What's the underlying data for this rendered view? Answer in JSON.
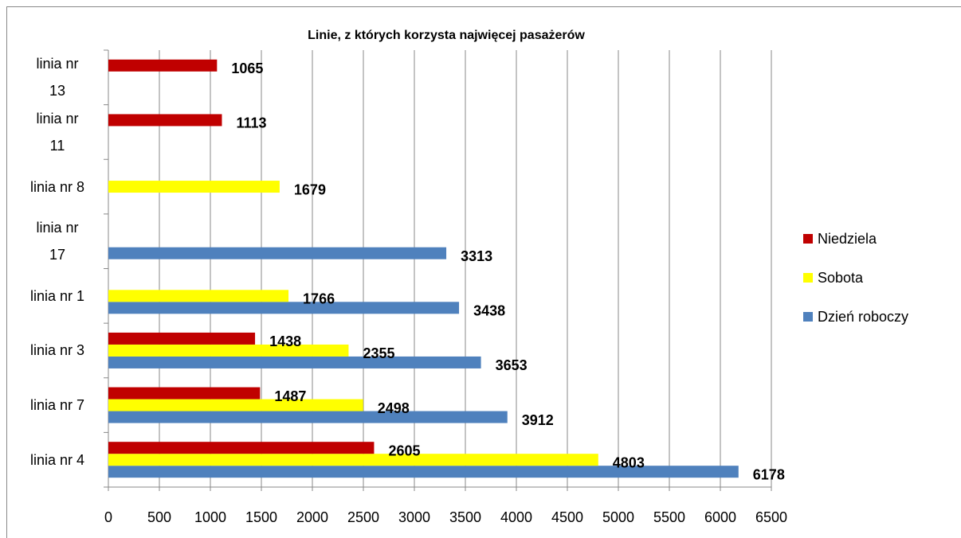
{
  "chart_data": {
    "type": "bar",
    "orientation": "horizontal",
    "title": "Linie, z których korzysta najwięcej pasażerów",
    "categories": [
      "linia nr 4",
      "linia nr 7",
      "linia nr 3",
      "linia nr 1",
      "linia nr 17",
      "linia nr 8",
      "linia nr 11",
      "linia nr 13"
    ],
    "series": [
      {
        "name": "Dzień roboczy",
        "color": "#4f81bd",
        "values": [
          6178,
          3912,
          3653,
          3438,
          3313,
          null,
          null,
          null
        ]
      },
      {
        "name": "Sobota",
        "color": "#ffff00",
        "values": [
          4803,
          2498,
          2355,
          1766,
          null,
          1679,
          null,
          null
        ]
      },
      {
        "name": "Niedziela",
        "color": "#c00000",
        "values": [
          2605,
          1487,
          1438,
          null,
          null,
          null,
          1113,
          1065
        ]
      }
    ],
    "xlim": [
      0,
      6500
    ],
    "xticks": [
      0,
      500,
      1000,
      1500,
      2000,
      2500,
      3000,
      3500,
      4000,
      4500,
      5000,
      5500,
      6000,
      6500
    ],
    "grid": true,
    "legend": "right",
    "data_labels": true
  }
}
